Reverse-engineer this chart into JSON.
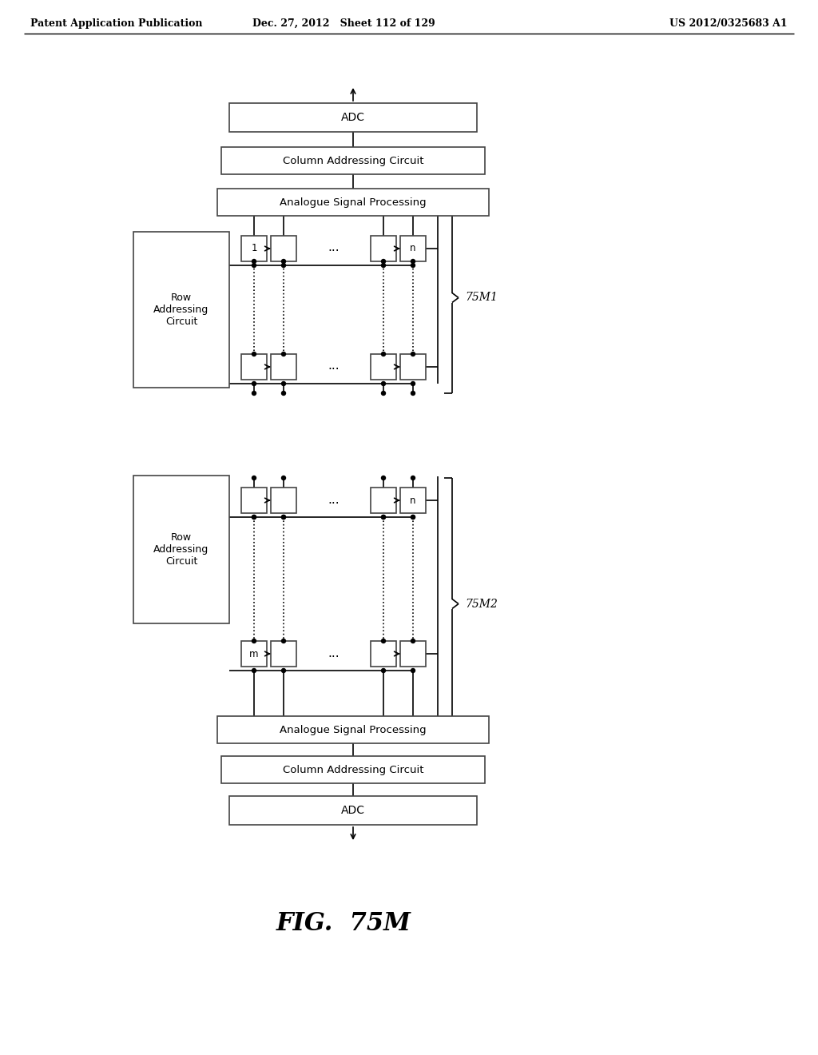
{
  "header_left": "Patent Application Publication",
  "header_mid": "Dec. 27, 2012   Sheet 112 of 129",
  "header_right": "US 2012/0325683 A1",
  "figure_label": "FIG.  75M",
  "label_75M1": "75M1",
  "label_75M2": "75M2",
  "block_adc_top": "ADC",
  "block_col_addr_top": "Column Addressing Circuit",
  "block_asp_top": "Analogue Signal Processing",
  "block_row_addr_top": "Row\nAddressing\nCircuit",
  "block_adc_bot": "ADC",
  "block_col_addr_bot": "Column Addressing Circuit",
  "block_asp_bot": "Analogue Signal Processing",
  "block_row_addr_bot": "Row\nAddressing\nCircuit",
  "cell_label_1": "1",
  "cell_label_n": "n",
  "cell_label_m": "m",
  "dots": "...",
  "bg_color": "#ffffff",
  "line_color": "#000000",
  "box_edge_color": "#444444",
  "text_color": "#000000",
  "font_size_header": 9,
  "font_size_block": 9.5,
  "font_size_cell": 8.5,
  "font_size_fig": 22,
  "font_size_brace_label": 10
}
